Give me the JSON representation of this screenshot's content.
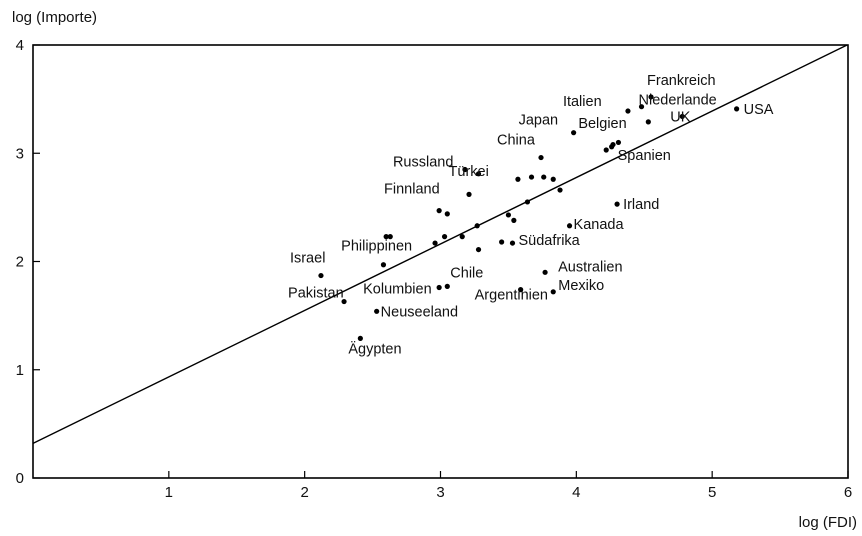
{
  "chart_data": {
    "type": "scatter",
    "title": "",
    "xlabel": "log (FDI)",
    "ylabel": "log (Importe)",
    "xlim": [
      0,
      6
    ],
    "ylim": [
      0,
      4
    ],
    "xticks": [
      1,
      2,
      3,
      4,
      5,
      6
    ],
    "yticks": [
      0,
      1,
      2,
      3,
      4
    ],
    "grid": false,
    "legend": "none",
    "regression_line": {
      "intercept": 0.32,
      "slope": 0.614
    },
    "points": [
      {
        "label": "Frankreich",
        "x": 4.55,
        "y": 3.52
      },
      {
        "label": "Niederlande",
        "x": 4.48,
        "y": 3.43
      },
      {
        "label": "Italien",
        "x": 4.38,
        "y": 3.39
      },
      {
        "label": "USA",
        "x": 5.18,
        "y": 3.41
      },
      {
        "label": "UK",
        "x": 4.78,
        "y": 3.34
      },
      {
        "label": "Belgien",
        "x": 4.53,
        "y": 3.29
      },
      {
        "label": "Japan",
        "x": 3.98,
        "y": 3.19
      },
      {
        "label": "Spanien",
        "x": 4.26,
        "y": 3.06
      },
      {
        "label": "China",
        "x": 3.74,
        "y": 2.96
      },
      {
        "label": "Russland",
        "x": 3.18,
        "y": 2.85
      },
      {
        "label": "Türkei",
        "x": 3.28,
        "y": 2.81
      },
      {
        "label": "Irland",
        "x": 4.3,
        "y": 2.53
      },
      {
        "label": "Finnland",
        "x": 3.21,
        "y": 2.62
      },
      {
        "label": "Kanada",
        "x": 3.95,
        "y": 2.33
      },
      {
        "label": "Südafrika",
        "x": 3.53,
        "y": 2.17
      },
      {
        "label": "Philippinen",
        "x": 2.6,
        "y": 2.23
      },
      {
        "label": "Israel",
        "x": 2.12,
        "y": 1.87
      },
      {
        "label": "Australien",
        "x": 3.77,
        "y": 1.9
      },
      {
        "label": "Chile",
        "x": 3.05,
        "y": 1.77
      },
      {
        "label": "Pakistan",
        "x": 2.29,
        "y": 1.63
      },
      {
        "label": "Kolumbien",
        "x": 2.99,
        "y": 1.76
      },
      {
        "label": "Mexiko",
        "x": 3.83,
        "y": 1.72
      },
      {
        "label": "Argentinien",
        "x": 3.59,
        "y": 1.74
      },
      {
        "label": "Neuseeland",
        "x": 2.53,
        "y": 1.54
      },
      {
        "label": "Ägypten",
        "x": 2.41,
        "y": 1.29
      },
      {
        "label": "",
        "x": 2.63,
        "y": 2.23
      },
      {
        "label": "",
        "x": 2.58,
        "y": 1.97
      },
      {
        "label": "",
        "x": 2.96,
        "y": 2.17
      },
      {
        "label": "",
        "x": 3.03,
        "y": 2.23
      },
      {
        "label": "",
        "x": 3.16,
        "y": 2.23
      },
      {
        "label": "",
        "x": 3.27,
        "y": 2.33
      },
      {
        "label": "",
        "x": 3.28,
        "y": 2.11
      },
      {
        "label": "",
        "x": 3.45,
        "y": 2.18
      },
      {
        "label": "",
        "x": 3.5,
        "y": 2.43
      },
      {
        "label": "",
        "x": 3.54,
        "y": 2.38
      },
      {
        "label": "",
        "x": 2.99,
        "y": 2.47
      },
      {
        "label": "",
        "x": 3.05,
        "y": 2.44
      },
      {
        "label": "",
        "x": 3.64,
        "y": 2.55
      },
      {
        "label": "",
        "x": 3.57,
        "y": 2.76
      },
      {
        "label": "",
        "x": 3.67,
        "y": 2.78
      },
      {
        "label": "",
        "x": 3.76,
        "y": 2.78
      },
      {
        "label": "",
        "x": 3.83,
        "y": 2.76
      },
      {
        "label": "",
        "x": 3.88,
        "y": 2.66
      },
      {
        "label": "",
        "x": 4.22,
        "y": 3.03
      },
      {
        "label": "",
        "x": 4.27,
        "y": 3.08
      },
      {
        "label": "",
        "x": 4.31,
        "y": 3.1
      }
    ]
  }
}
